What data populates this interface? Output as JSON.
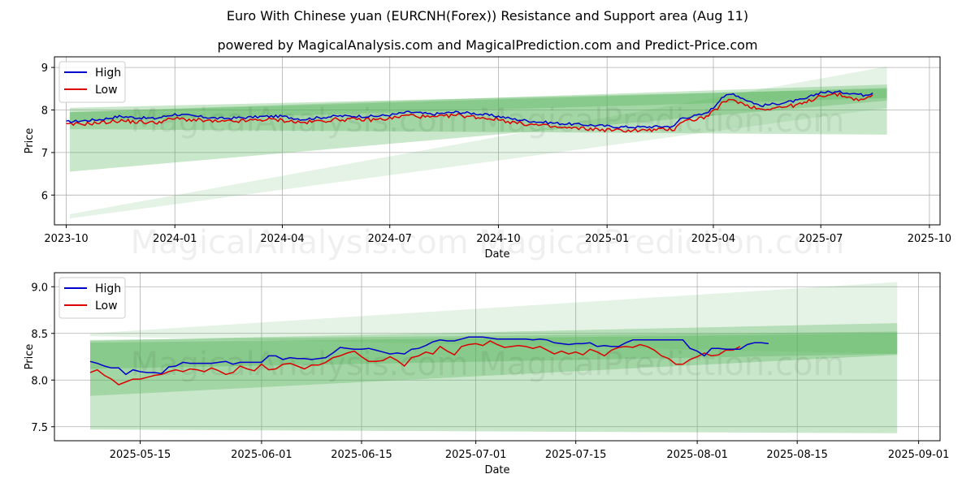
{
  "title": "Euro With Chinese yuan (EURCNH(Forex)) Resistance and Support area (Aug 11)",
  "subtitle": "powered by MagicalAnalysis.com and MagicalPrediction.com and Predict-Price.com",
  "watermarks": [
    "MagicalAnalysis.com",
    "MagicalPrediction.com"
  ],
  "colors": {
    "high": "#0000cc",
    "low": "#dd0000",
    "band": "#4caf50"
  },
  "chart_data": [
    {
      "type": "line",
      "xlabel": "Date",
      "ylabel": "Price",
      "xlim": [
        -10,
        740
      ],
      "ylim": [
        5.3,
        9.25
      ],
      "xticks": [
        {
          "v": 0,
          "label": "2023-10"
        },
        {
          "v": 92,
          "label": "2024-01"
        },
        {
          "v": 183,
          "label": "2024-04"
        },
        {
          "v": 274,
          "label": "2024-07"
        },
        {
          "v": 366,
          "label": "2024-10"
        },
        {
          "v": 458,
          "label": "2025-01"
        },
        {
          "v": 548,
          "label": "2025-04"
        },
        {
          "v": 639,
          "label": "2025-07"
        },
        {
          "v": 731,
          "label": "2025-10"
        }
      ],
      "yticks": [
        6,
        7,
        8,
        9
      ],
      "legend": [
        "High",
        "Low"
      ],
      "bands": [
        {
          "x": [
            3,
            695
          ],
          "lower": [
            5.45,
            8.05
          ],
          "upper": [
            5.55,
            9.02
          ],
          "opacity": 0.15
        },
        {
          "x": [
            3,
            695
          ],
          "lower": [
            6.55,
            8.22
          ],
          "upper": [
            7.95,
            8.6
          ],
          "opacity": 0.3
        },
        {
          "x": [
            3,
            695
          ],
          "lower": [
            7.55,
            7.42
          ],
          "upper": [
            8.05,
            8.5
          ],
          "opacity": 0.3
        },
        {
          "x": [
            3,
            695
          ],
          "lower": [
            7.72,
            8.28
          ],
          "upper": [
            7.95,
            8.52
          ],
          "opacity": 0.3
        }
      ],
      "high_anchors": [
        [
          0,
          7.72
        ],
        [
          30,
          7.78
        ],
        [
          45,
          7.85
        ],
        [
          60,
          7.82
        ],
        [
          75,
          7.8
        ],
        [
          92,
          7.9
        ],
        [
          110,
          7.85
        ],
        [
          130,
          7.8
        ],
        [
          150,
          7.82
        ],
        [
          170,
          7.85
        ],
        [
          183,
          7.85
        ],
        [
          200,
          7.78
        ],
        [
          230,
          7.86
        ],
        [
          260,
          7.85
        ],
        [
          274,
          7.88
        ],
        [
          290,
          7.95
        ],
        [
          310,
          7.9
        ],
        [
          330,
          7.95
        ],
        [
          345,
          7.92
        ],
        [
          366,
          7.85
        ],
        [
          380,
          7.78
        ],
        [
          400,
          7.72
        ],
        [
          420,
          7.68
        ],
        [
          440,
          7.65
        ],
        [
          458,
          7.62
        ],
        [
          470,
          7.6
        ],
        [
          490,
          7.6
        ],
        [
          515,
          7.62
        ],
        [
          520,
          7.8
        ],
        [
          540,
          7.9
        ],
        [
          548,
          8.05
        ],
        [
          555,
          8.3
        ],
        [
          565,
          8.38
        ],
        [
          575,
          8.25
        ],
        [
          588,
          8.1
        ],
        [
          610,
          8.18
        ],
        [
          625,
          8.25
        ],
        [
          639,
          8.42
        ],
        [
          655,
          8.42
        ],
        [
          665,
          8.4
        ],
        [
          675,
          8.35
        ],
        [
          683,
          8.4
        ]
      ],
      "low_anchors": [
        [
          0,
          7.65
        ],
        [
          30,
          7.7
        ],
        [
          45,
          7.75
        ],
        [
          60,
          7.72
        ],
        [
          75,
          7.7
        ],
        [
          92,
          7.8
        ],
        [
          110,
          7.76
        ],
        [
          130,
          7.72
        ],
        [
          150,
          7.74
        ],
        [
          170,
          7.78
        ],
        [
          183,
          7.76
        ],
        [
          200,
          7.7
        ],
        [
          230,
          7.78
        ],
        [
          260,
          7.77
        ],
        [
          274,
          7.8
        ],
        [
          290,
          7.88
        ],
        [
          310,
          7.82
        ],
        [
          330,
          7.88
        ],
        [
          345,
          7.84
        ],
        [
          366,
          7.78
        ],
        [
          380,
          7.7
        ],
        [
          400,
          7.64
        ],
        [
          420,
          7.58
        ],
        [
          440,
          7.56
        ],
        [
          458,
          7.53
        ],
        [
          470,
          7.52
        ],
        [
          490,
          7.52
        ],
        [
          515,
          7.55
        ],
        [
          520,
          7.72
        ],
        [
          540,
          7.82
        ],
        [
          548,
          7.95
        ],
        [
          555,
          8.15
        ],
        [
          565,
          8.25
        ],
        [
          575,
          8.12
        ],
        [
          588,
          8.02
        ],
        [
          610,
          8.08
        ],
        [
          625,
          8.15
        ],
        [
          639,
          8.35
        ],
        [
          655,
          8.36
        ],
        [
          665,
          8.28
        ],
        [
          675,
          8.22
        ],
        [
          683,
          8.36
        ]
      ]
    },
    {
      "type": "line",
      "xlabel": "Date",
      "ylabel": "Price",
      "xlim": [
        -5,
        119
      ],
      "ylim": [
        7.35,
        9.15
      ],
      "xticks": [
        {
          "v": 7,
          "label": "2025-05-15"
        },
        {
          "v": 24,
          "label": "2025-06-01"
        },
        {
          "v": 38,
          "label": "2025-06-15"
        },
        {
          "v": 54,
          "label": "2025-07-01"
        },
        {
          "v": 68,
          "label": "2025-07-15"
        },
        {
          "v": 85,
          "label": "2025-08-01"
        },
        {
          "v": 99,
          "label": "2025-08-15"
        },
        {
          "v": 116,
          "label": "2025-09-01"
        }
      ],
      "yticks": [
        7.5,
        8.0,
        8.5,
        9.0
      ],
      "legend": [
        "High",
        "Low"
      ],
      "bands": [
        {
          "x": [
            0,
            113
          ],
          "lower": [
            8.47,
            8.28
          ],
          "upper": [
            8.5,
            9.05
          ],
          "opacity": 0.15
        },
        {
          "x": [
            0,
            113
          ],
          "lower": [
            7.83,
            8.27
          ],
          "upper": [
            8.42,
            8.61
          ],
          "opacity": 0.3
        },
        {
          "x": [
            0,
            113
          ],
          "lower": [
            7.47,
            7.43
          ],
          "upper": [
            8.43,
            8.52
          ],
          "opacity": 0.3
        },
        {
          "x": [
            0,
            113
          ],
          "lower": [
            8.12,
            8.28
          ],
          "upper": [
            8.4,
            8.5
          ],
          "opacity": 0.3
        }
      ],
      "high": [
        [
          0,
          8.2
        ],
        [
          1,
          8.18
        ],
        [
          2,
          8.15
        ],
        [
          3,
          8.13
        ],
        [
          4,
          8.13
        ],
        [
          5,
          8.06
        ],
        [
          6,
          8.11
        ],
        [
          7,
          8.09
        ],
        [
          8,
          8.08
        ],
        [
          9,
          8.08
        ],
        [
          10,
          8.07
        ],
        [
          11,
          8.14
        ],
        [
          12,
          8.15
        ],
        [
          13,
          8.19
        ],
        [
          14,
          8.18
        ],
        [
          15,
          8.18
        ],
        [
          16,
          8.18
        ],
        [
          17,
          8.18
        ],
        [
          18,
          8.19
        ],
        [
          19,
          8.2
        ],
        [
          20,
          8.17
        ],
        [
          21,
          8.19
        ],
        [
          22,
          8.19
        ],
        [
          23,
          8.19
        ],
        [
          24,
          8.19
        ],
        [
          25,
          8.26
        ],
        [
          26,
          8.26
        ],
        [
          27,
          8.22
        ],
        [
          28,
          8.24
        ],
        [
          29,
          8.23
        ],
        [
          30,
          8.23
        ],
        [
          31,
          8.22
        ],
        [
          32,
          8.23
        ],
        [
          33,
          8.24
        ],
        [
          34,
          8.29
        ],
        [
          35,
          8.35
        ],
        [
          36,
          8.34
        ],
        [
          37,
          8.33
        ],
        [
          38,
          8.33
        ],
        [
          39,
          8.34
        ],
        [
          40,
          8.32
        ],
        [
          41,
          8.3
        ],
        [
          42,
          8.28
        ],
        [
          43,
          8.29
        ],
        [
          44,
          8.28
        ],
        [
          45,
          8.33
        ],
        [
          46,
          8.34
        ],
        [
          47,
          8.37
        ],
        [
          48,
          8.41
        ],
        [
          49,
          8.43
        ],
        [
          50,
          8.42
        ],
        [
          51,
          8.42
        ],
        [
          52,
          8.44
        ],
        [
          53,
          8.46
        ],
        [
          54,
          8.46
        ],
        [
          55,
          8.46
        ],
        [
          56,
          8.45
        ],
        [
          57,
          8.44
        ],
        [
          58,
          8.44
        ],
        [
          59,
          8.44
        ],
        [
          60,
          8.44
        ],
        [
          61,
          8.44
        ],
        [
          62,
          8.43
        ],
        [
          63,
          8.44
        ],
        [
          64,
          8.43
        ],
        [
          65,
          8.4
        ],
        [
          66,
          8.39
        ],
        [
          67,
          8.38
        ],
        [
          68,
          8.39
        ],
        [
          69,
          8.39
        ],
        [
          70,
          8.4
        ],
        [
          71,
          8.36
        ],
        [
          72,
          8.37
        ],
        [
          73,
          8.36
        ],
        [
          74,
          8.36
        ],
        [
          75,
          8.4
        ],
        [
          76,
          8.43
        ],
        [
          77,
          8.43
        ],
        [
          78,
          8.43
        ],
        [
          79,
          8.43
        ],
        [
          80,
          8.43
        ],
        [
          81,
          8.43
        ],
        [
          82,
          8.43
        ],
        [
          83,
          8.43
        ],
        [
          84,
          8.34
        ],
        [
          85,
          8.31
        ],
        [
          86,
          8.26
        ],
        [
          87,
          8.34
        ],
        [
          88,
          8.34
        ],
        [
          89,
          8.33
        ],
        [
          90,
          8.33
        ],
        [
          91,
          8.33
        ],
        [
          92,
          8.38
        ],
        [
          93,
          8.4
        ],
        [
          94,
          8.4
        ],
        [
          95,
          8.39
        ]
      ],
      "low": [
        [
          0,
          8.08
        ],
        [
          1,
          8.11
        ],
        [
          2,
          8.05
        ],
        [
          3,
          8.01
        ],
        [
          4,
          7.95
        ],
        [
          5,
          7.98
        ],
        [
          6,
          8.01
        ],
        [
          7,
          8.01
        ],
        [
          8,
          8.03
        ],
        [
          9,
          8.05
        ],
        [
          10,
          8.06
        ],
        [
          11,
          8.09
        ],
        [
          12,
          8.11
        ],
        [
          13,
          8.09
        ],
        [
          14,
          8.12
        ],
        [
          15,
          8.11
        ],
        [
          16,
          8.09
        ],
        [
          17,
          8.13
        ],
        [
          18,
          8.1
        ],
        [
          19,
          8.06
        ],
        [
          20,
          8.08
        ],
        [
          21,
          8.15
        ],
        [
          22,
          8.12
        ],
        [
          23,
          8.1
        ],
        [
          24,
          8.17
        ],
        [
          25,
          8.11
        ],
        [
          26,
          8.12
        ],
        [
          27,
          8.17
        ],
        [
          28,
          8.18
        ],
        [
          29,
          8.15
        ],
        [
          30,
          8.12
        ],
        [
          31,
          8.16
        ],
        [
          32,
          8.16
        ],
        [
          33,
          8.19
        ],
        [
          34,
          8.24
        ],
        [
          35,
          8.26
        ],
        [
          36,
          8.29
        ],
        [
          37,
          8.31
        ],
        [
          38,
          8.25
        ],
        [
          39,
          8.2
        ],
        [
          40,
          8.2
        ],
        [
          41,
          8.21
        ],
        [
          42,
          8.25
        ],
        [
          43,
          8.21
        ],
        [
          44,
          8.15
        ],
        [
          45,
          8.24
        ],
        [
          46,
          8.26
        ],
        [
          47,
          8.3
        ],
        [
          48,
          8.28
        ],
        [
          49,
          8.36
        ],
        [
          50,
          8.31
        ],
        [
          51,
          8.27
        ],
        [
          52,
          8.36
        ],
        [
          53,
          8.38
        ],
        [
          54,
          8.39
        ],
        [
          55,
          8.37
        ],
        [
          56,
          8.42
        ],
        [
          57,
          8.38
        ],
        [
          58,
          8.35
        ],
        [
          59,
          8.36
        ],
        [
          60,
          8.37
        ],
        [
          61,
          8.36
        ],
        [
          62,
          8.34
        ],
        [
          63,
          8.36
        ],
        [
          64,
          8.32
        ],
        [
          65,
          8.28
        ],
        [
          66,
          8.31
        ],
        [
          67,
          8.28
        ],
        [
          68,
          8.3
        ],
        [
          69,
          8.27
        ],
        [
          70,
          8.33
        ],
        [
          71,
          8.3
        ],
        [
          72,
          8.26
        ],
        [
          73,
          8.32
        ],
        [
          74,
          8.35
        ],
        [
          75,
          8.36
        ],
        [
          76,
          8.35
        ],
        [
          77,
          8.38
        ],
        [
          78,
          8.36
        ],
        [
          79,
          8.32
        ],
        [
          80,
          8.26
        ],
        [
          81,
          8.23
        ],
        [
          82,
          8.17
        ],
        [
          83,
          8.17
        ],
        [
          84,
          8.22
        ],
        [
          85,
          8.25
        ],
        [
          86,
          8.29
        ],
        [
          87,
          8.26
        ],
        [
          88,
          8.27
        ],
        [
          89,
          8.32
        ],
        [
          90,
          8.32
        ],
        [
          91,
          8.36
        ]
      ]
    }
  ]
}
